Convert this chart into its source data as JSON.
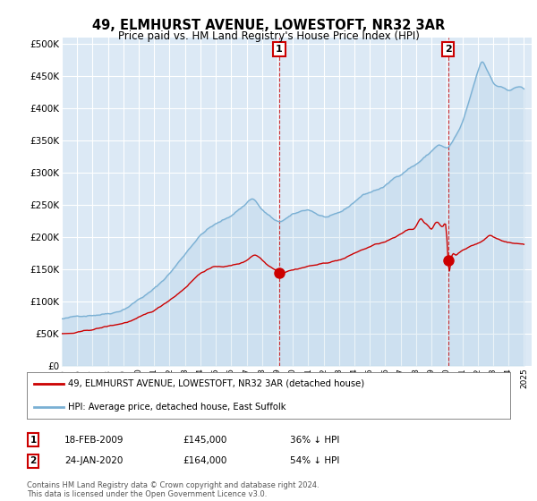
{
  "title": "49, ELMHURST AVENUE, LOWESTOFT, NR32 3AR",
  "subtitle": "Price paid vs. HM Land Registry's House Price Index (HPI)",
  "plot_bg_color": "#dce9f5",
  "ylabel_ticks": [
    "£0",
    "£50K",
    "£100K",
    "£150K",
    "£200K",
    "£250K",
    "£300K",
    "£350K",
    "£400K",
    "£450K",
    "£500K"
  ],
  "ytick_values": [
    0,
    50000,
    100000,
    150000,
    200000,
    250000,
    300000,
    350000,
    400000,
    450000,
    500000
  ],
  "ylim": [
    0,
    510000
  ],
  "xlim_start": 1995.0,
  "xlim_end": 2025.5,
  "annotation1": {
    "label": "1",
    "date": "18-FEB-2009",
    "price": "£145,000",
    "hpi_note": "36% ↓ HPI",
    "x": 2009.12
  },
  "annotation2": {
    "label": "2",
    "date": "24-JAN-2020",
    "price": "£164,000",
    "hpi_note": "54% ↓ HPI",
    "x": 2020.07
  },
  "legend_line1": "49, ELMHURST AVENUE, LOWESTOFT, NR32 3AR (detached house)",
  "legend_line2": "HPI: Average price, detached house, East Suffolk",
  "footer": "Contains HM Land Registry data © Crown copyright and database right 2024.\nThis data is licensed under the Open Government Licence v3.0.",
  "hpi_color": "#7ab0d4",
  "price_color": "#cc0000",
  "xtick_years": [
    1995,
    1996,
    1997,
    1998,
    1999,
    2000,
    2001,
    2002,
    2003,
    2004,
    2005,
    2006,
    2007,
    2008,
    2009,
    2010,
    2011,
    2012,
    2013,
    2014,
    2015,
    2016,
    2017,
    2018,
    2019,
    2020,
    2021,
    2022,
    2023,
    2024,
    2025
  ]
}
